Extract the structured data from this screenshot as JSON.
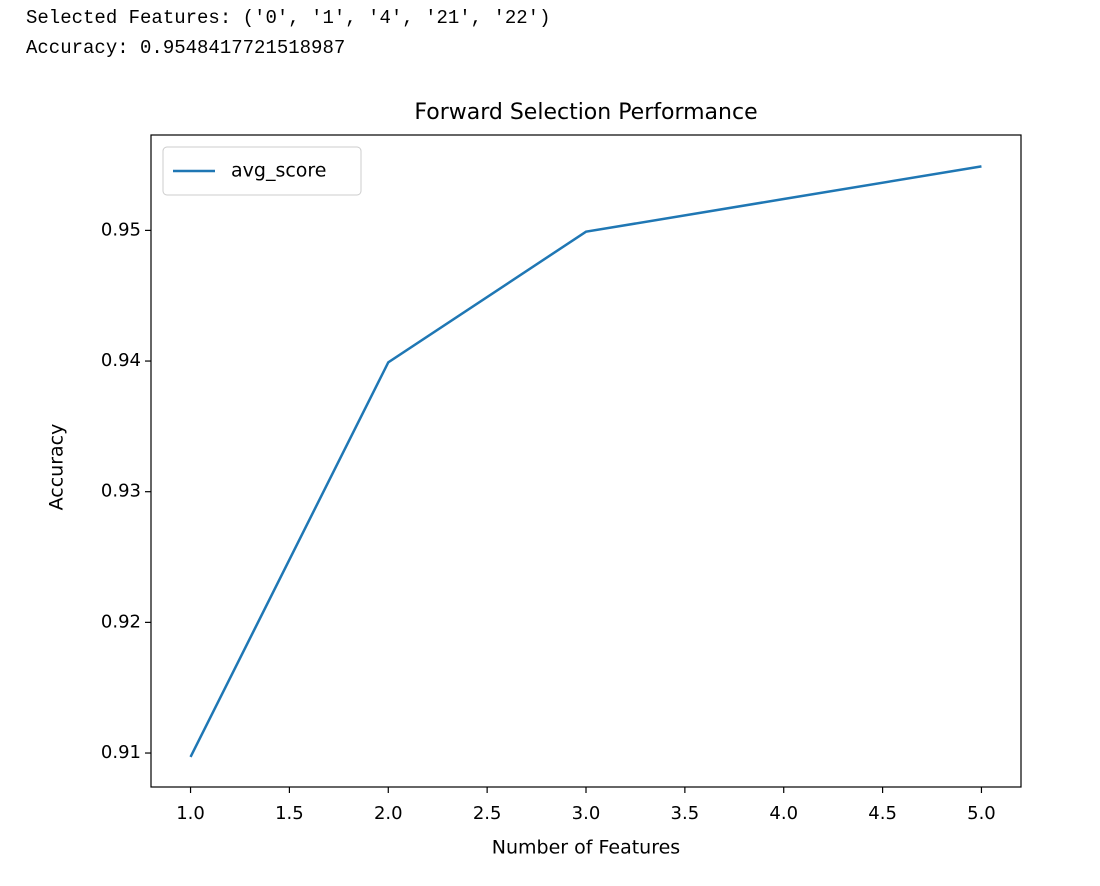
{
  "output": {
    "lines": [
      "Selected Features: ('0', '1', '4', '21', '22')",
      "Accuracy: 0.9548417721518987"
    ]
  },
  "chart_data": {
    "type": "line",
    "title": "Forward Selection Performance",
    "x_label": "Number of Features",
    "y_label": "Accuracy",
    "x": [
      1,
      2,
      3,
      4,
      5
    ],
    "series": [
      {
        "name": "avg_score",
        "color": "#1f77b4",
        "values": [
          0.9097,
          0.9399,
          0.9499,
          0.9524,
          0.9549
        ]
      }
    ],
    "xlim": [
      0.8,
      5.2
    ],
    "xticks": [
      {
        "value": 1,
        "label": "1.0"
      },
      {
        "value": 1.5,
        "label": "1.5"
      },
      {
        "value": 2,
        "label": "2.0"
      },
      {
        "value": 2.5,
        "label": "2.5"
      },
      {
        "value": 3,
        "label": "3.0"
      },
      {
        "value": 3.5,
        "label": "3.5"
      },
      {
        "value": 4,
        "label": "4.0"
      },
      {
        "value": 4.5,
        "label": "4.5"
      },
      {
        "value": 5,
        "label": "5.0"
      }
    ],
    "ylim": [
      0.9074,
      0.9573
    ],
    "yticks": [
      0.91,
      0.92,
      0.93,
      0.94,
      0.95
    ],
    "legend": "upper left",
    "grid": false
  }
}
